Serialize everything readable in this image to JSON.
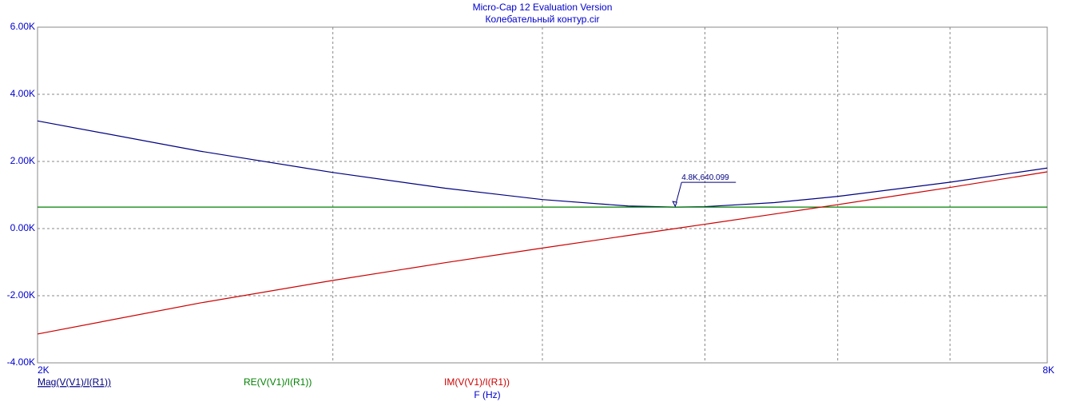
{
  "chart_data": {
    "type": "line",
    "title": "Micro-Cap 12 Evaluation Version",
    "subtitle": "Колебательный контур.cir",
    "x_label": "F (Hz)",
    "x_scale": "log",
    "x": [
      2000,
      2500,
      3000,
      3500,
      4000,
      4500,
      4800,
      5000,
      5500,
      6000,
      7000,
      8000
    ],
    "series": [
      {
        "name": "Mag(V(V1)/I(R1))",
        "color": "#000080",
        "values": [
          3207,
          2307,
          1671,
          1202,
          864,
          672,
          640.099,
          653,
          773,
          958,
          1381,
          1804
        ]
      },
      {
        "name": "RE(V(V1)/I(R1))",
        "color": "#008000",
        "values": [
          640.099,
          640.099,
          640.099,
          640.099,
          640.099,
          640.099,
          640.099,
          640.099,
          640.099,
          640.099,
          640.099,
          640.099
        ]
      },
      {
        "name": "IM(V(V1)/I(R1))",
        "color": "#cc0000",
        "values": [
          -3142,
          -2216,
          -1544,
          -1017,
          -581,
          -205,
          0,
          129,
          433,
          713,
          1224,
          1690
        ]
      }
    ],
    "annotation": "4.8K,640.099",
    "xlim": [
      2000,
      8000
    ],
    "xticks": [
      {
        "value": 2000,
        "label": "2K"
      },
      {
        "value": 8000,
        "label": "8K"
      }
    ],
    "xgrid": [
      3000,
      4000,
      5000,
      6000,
      7000
    ],
    "ylim": [
      -4000,
      6000
    ],
    "yticks": [
      {
        "value": -4000,
        "label": "-4.00K"
      },
      {
        "value": -2000,
        "label": "-2.00K"
      },
      {
        "value": 0,
        "label": "0.00K"
      },
      {
        "value": 2000,
        "label": "2.00K"
      },
      {
        "value": 4000,
        "label": "4.00K"
      },
      {
        "value": 6000,
        "label": "6.00K"
      }
    ],
    "grid": true
  }
}
